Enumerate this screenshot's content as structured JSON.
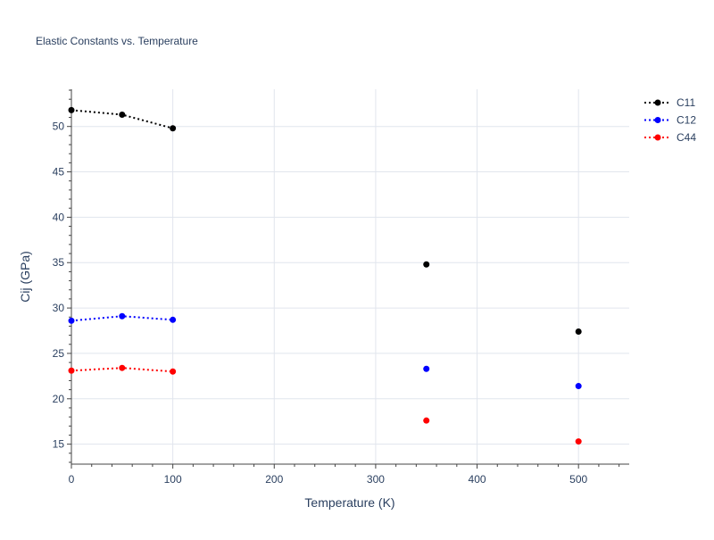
{
  "chart_data": {
    "type": "line",
    "title": "Elastic Constants vs. Temperature",
    "xlabel": "Temperature (K)",
    "ylabel": "Cij (GPa)",
    "xlim": [
      0,
      550
    ],
    "ylim": [
      12.8,
      54.1
    ],
    "x_ticks": [
      0,
      100,
      200,
      300,
      400,
      500
    ],
    "y_ticks": [
      15,
      20,
      25,
      30,
      35,
      40,
      45,
      50
    ],
    "grid": true,
    "legend_position": "top-right",
    "series": [
      {
        "name": "C11",
        "color": "#000000",
        "line_style": "dotted",
        "points": [
          {
            "x": 0,
            "y": 51.8
          },
          {
            "x": 50,
            "y": 51.3
          },
          {
            "x": 100,
            "y": 49.8
          },
          {
            "x": 350,
            "y": 34.8
          },
          {
            "x": 500,
            "y": 27.4
          }
        ]
      },
      {
        "name": "C12",
        "color": "#0000ff",
        "line_style": "dotted",
        "points": [
          {
            "x": 0,
            "y": 28.6
          },
          {
            "x": 50,
            "y": 29.1
          },
          {
            "x": 100,
            "y": 28.7
          },
          {
            "x": 350,
            "y": 23.3
          },
          {
            "x": 500,
            "y": 21.4
          }
        ]
      },
      {
        "name": "C44",
        "color": "#ff0000",
        "line_style": "dotted",
        "points": [
          {
            "x": 0,
            "y": 23.1
          },
          {
            "x": 50,
            "y": 23.4
          },
          {
            "x": 100,
            "y": 23.0
          },
          {
            "x": 350,
            "y": 17.6
          },
          {
            "x": 500,
            "y": 15.3
          }
        ]
      }
    ],
    "connected_segments_note_x_max": 100
  }
}
